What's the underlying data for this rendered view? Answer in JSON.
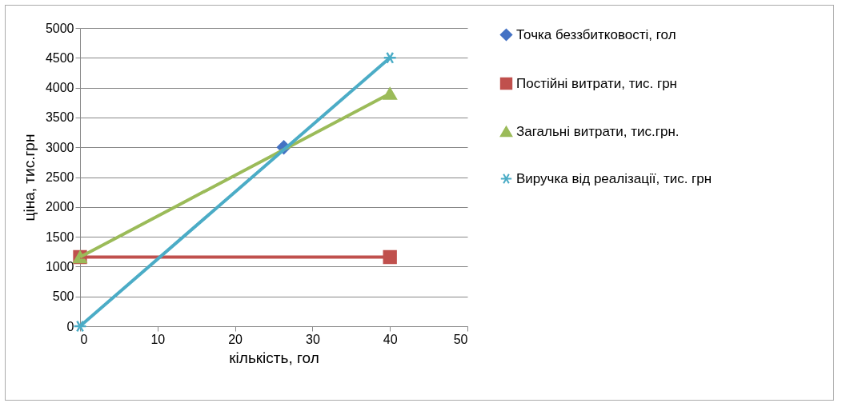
{
  "chart_data": {
    "type": "line",
    "xlabel": "кількість, гол",
    "ylabel": "ціна, тис.грн",
    "xlim": [
      0,
      50
    ],
    "xticks": [
      0,
      10,
      20,
      30,
      40,
      50
    ],
    "ylim": [
      0,
      5000
    ],
    "yticks": [
      0,
      500,
      1000,
      1500,
      2000,
      2500,
      3000,
      3500,
      4000,
      4500,
      5000
    ],
    "grid": "y",
    "legend": "right",
    "series": [
      {
        "name": "Точка беззбитковості, гол",
        "color": "#4472c4",
        "marker": "diamond",
        "x": [
          26.3
        ],
        "values": [
          3000
        ]
      },
      {
        "name": "Постійні витрати, тис. грн",
        "color": "#c0504d",
        "marker": "square",
        "x": [
          0,
          40
        ],
        "values": [
          1160,
          1160
        ]
      },
      {
        "name": "Загальні витрати, тис.грн.",
        "color": "#9bbb59",
        "marker": "triangle",
        "x": [
          0,
          40
        ],
        "values": [
          1160,
          3900
        ]
      },
      {
        "name": "Виручка від реалізації, тис. грн",
        "color": "#4bacc6",
        "marker": "cross",
        "x": [
          0,
          40
        ],
        "values": [
          0,
          4500
        ]
      }
    ]
  }
}
